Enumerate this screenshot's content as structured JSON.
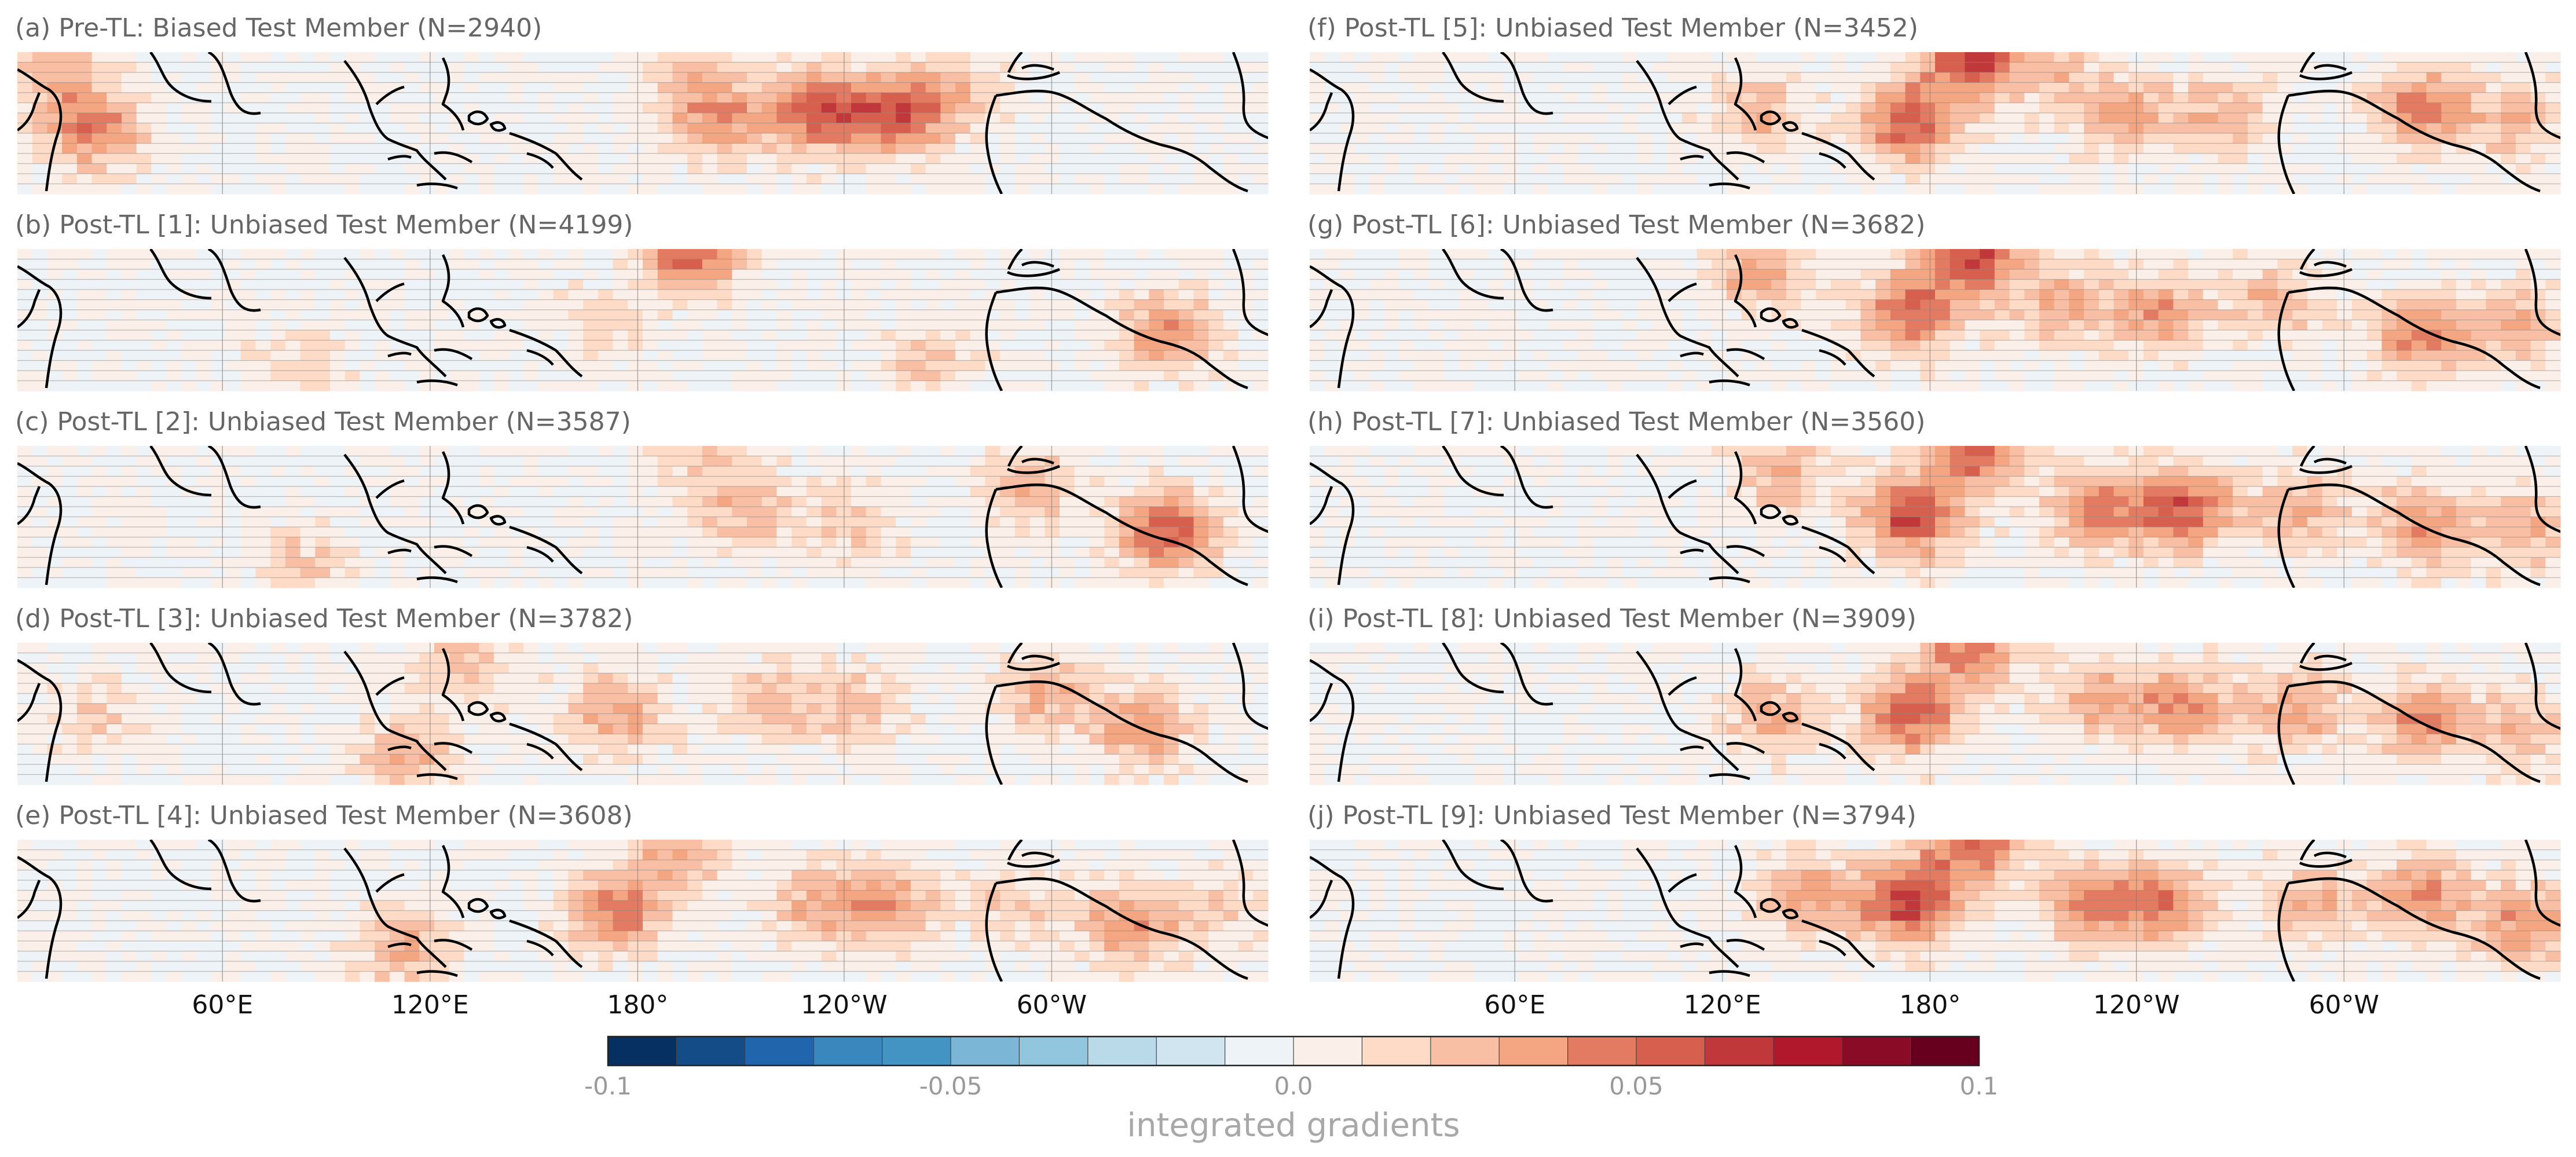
{
  "chart_data": [
    {
      "type": "heatmap",
      "title": "(a) Pre-TL: Biased Test Member (N=2940)"
    },
    {
      "type": "heatmap",
      "title": "(b) Post-TL [1]: Unbiased Test Member (N=4199)"
    },
    {
      "type": "heatmap",
      "title": "(c) Post-TL [2]: Unbiased Test Member (N=3587)"
    },
    {
      "type": "heatmap",
      "title": "(d) Post-TL [3]: Unbiased Test Member (N=3782)"
    },
    {
      "type": "heatmap",
      "title": "(e) Post-TL [4]: Unbiased Test Member (N=3608)"
    },
    {
      "type": "heatmap",
      "title": "(f) Post-TL [5]: Unbiased Test Member (N=3452)"
    },
    {
      "type": "heatmap",
      "title": "(g) Post-TL [6]: Unbiased Test Member (N=3682)"
    },
    {
      "type": "heatmap",
      "title": "(h) Post-TL [7]: Unbiased Test Member (N=3560)"
    },
    {
      "type": "heatmap",
      "title": "(i) Post-TL [8]: Unbiased Test Member (N=3909)"
    },
    {
      "type": "heatmap",
      "title": "(j) Post-TL [9]: Unbiased Test Member (N=3794)"
    }
  ],
  "longitude_ticks": [
    "60°E",
    "120°E",
    "180°",
    "120°W",
    "60°W"
  ],
  "colorbar": {
    "label": "integrated gradients",
    "range": [
      -0.1,
      0.1
    ],
    "tick_labels": [
      "-0.1",
      "-0.05",
      "0.0",
      "0.05",
      "0.1"
    ],
    "colors": [
      "#053061",
      "#134c87",
      "#2166ac",
      "#3a87bd",
      "#4393c3",
      "#7bb6d6",
      "#92c5de",
      "#bad9e9",
      "#d1e5f0",
      "#eef3f7",
      "#fbefe9",
      "#fddbc7",
      "#f8bfa4",
      "#f4a582",
      "#e27b62",
      "#d6604d",
      "#c0383a",
      "#b2182b",
      "#8a0b25",
      "#67001f"
    ]
  },
  "hotspots": [
    [
      [
        0.06,
        0.55,
        0.45
      ],
      [
        0.64,
        0.42,
        0.55
      ],
      [
        0.7,
        0.45,
        0.45
      ],
      [
        0.56,
        0.48,
        0.4
      ],
      [
        0.74,
        0.3,
        0.3
      ],
      [
        0.03,
        0.15,
        0.25
      ],
      [
        0.54,
        0.08,
        0.2
      ]
    ],
    [
      [
        0.54,
        0.05,
        0.5
      ],
      [
        0.92,
        0.6,
        0.4
      ],
      [
        0.73,
        0.8,
        0.2
      ],
      [
        0.23,
        0.75,
        0.15
      ],
      [
        0.47,
        0.55,
        0.15
      ]
    ],
    [
      [
        0.92,
        0.6,
        0.55
      ],
      [
        0.81,
        0.3,
        0.3
      ],
      [
        0.58,
        0.45,
        0.25
      ],
      [
        0.67,
        0.55,
        0.2
      ],
      [
        0.23,
        0.85,
        0.2
      ],
      [
        0.54,
        0.05,
        0.2
      ]
    ],
    [
      [
        0.48,
        0.5,
        0.35
      ],
      [
        0.9,
        0.6,
        0.4
      ],
      [
        0.82,
        0.35,
        0.3
      ],
      [
        0.67,
        0.45,
        0.25
      ],
      [
        0.6,
        0.4,
        0.25
      ],
      [
        0.31,
        0.8,
        0.3
      ],
      [
        0.36,
        0.15,
        0.25
      ],
      [
        0.06,
        0.5,
        0.2
      ]
    ],
    [
      [
        0.48,
        0.5,
        0.45
      ],
      [
        0.7,
        0.45,
        0.35
      ],
      [
        0.89,
        0.6,
        0.4
      ],
      [
        0.53,
        0.05,
        0.35
      ],
      [
        0.31,
        0.75,
        0.3
      ],
      [
        0.64,
        0.45,
        0.3
      ],
      [
        0.8,
        0.45,
        0.2
      ],
      [
        0.97,
        0.5,
        0.2
      ]
    ],
    [
      [
        0.48,
        0.5,
        0.55
      ],
      [
        0.53,
        0.05,
        0.6
      ],
      [
        0.89,
        0.4,
        0.45
      ],
      [
        0.73,
        0.45,
        0.3
      ],
      [
        0.65,
        0.45,
        0.3
      ],
      [
        0.36,
        0.45,
        0.3
      ],
      [
        0.6,
        0.15,
        0.2
      ],
      [
        0.97,
        0.5,
        0.25
      ]
    ],
    [
      [
        0.48,
        0.45,
        0.5
      ],
      [
        0.53,
        0.05,
        0.6
      ],
      [
        0.89,
        0.6,
        0.45
      ],
      [
        0.68,
        0.45,
        0.35
      ],
      [
        0.36,
        0.15,
        0.35
      ],
      [
        0.6,
        0.4,
        0.3
      ],
      [
        0.77,
        0.35,
        0.3
      ],
      [
        0.97,
        0.55,
        0.3
      ]
    ],
    [
      [
        0.48,
        0.5,
        0.6
      ],
      [
        0.53,
        0.05,
        0.5
      ],
      [
        0.7,
        0.45,
        0.55
      ],
      [
        0.63,
        0.45,
        0.45
      ],
      [
        0.89,
        0.55,
        0.4
      ],
      [
        0.79,
        0.45,
        0.3
      ],
      [
        0.97,
        0.6,
        0.3
      ],
      [
        0.38,
        0.2,
        0.3
      ]
    ],
    [
      [
        0.48,
        0.5,
        0.55
      ],
      [
        0.53,
        0.05,
        0.45
      ],
      [
        0.7,
        0.45,
        0.4
      ],
      [
        0.89,
        0.55,
        0.4
      ],
      [
        0.79,
        0.45,
        0.35
      ],
      [
        0.37,
        0.5,
        0.3
      ],
      [
        0.97,
        0.6,
        0.3
      ],
      [
        0.63,
        0.4,
        0.3
      ]
    ],
    [
      [
        0.48,
        0.45,
        0.65
      ],
      [
        0.53,
        0.05,
        0.5
      ],
      [
        0.68,
        0.45,
        0.45
      ],
      [
        0.62,
        0.45,
        0.4
      ],
      [
        0.89,
        0.4,
        0.4
      ],
      [
        0.97,
        0.6,
        0.4
      ],
      [
        0.4,
        0.4,
        0.35
      ],
      [
        0.8,
        0.45,
        0.3
      ]
    ]
  ]
}
